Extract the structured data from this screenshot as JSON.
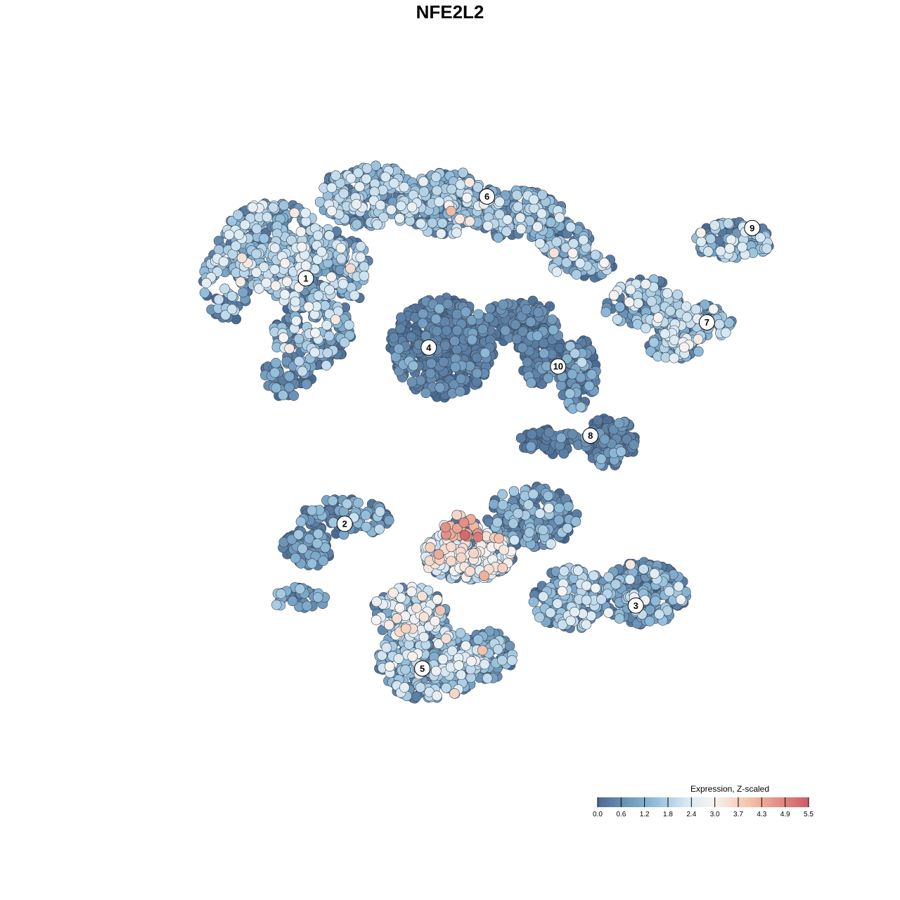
{
  "chart_data": {
    "type": "scatter",
    "title": "NFE2L2",
    "xlabel": "",
    "ylabel": "",
    "xlim": [
      0,
      100
    ],
    "ylim": [
      0,
      100
    ],
    "grid": false,
    "legend": {
      "title": "Expression, Z-scaled",
      "placement": "bottom-right",
      "ticks": [
        "0.0",
        "0.6",
        "1.2",
        "1.8",
        "2.4",
        "3.0",
        "3.7",
        "4.3",
        "4.9",
        "5.5"
      ],
      "range": [
        0,
        5.5
      ],
      "colors": [
        "#4a6a92",
        "#8ab7d6",
        "#d6e8f3",
        "#f7f4f2",
        "#f4c1a8",
        "#cf5b62"
      ]
    },
    "clusters": [
      {
        "id": "1",
        "x": 25,
        "y": 77
      },
      {
        "id": "2",
        "x": 31,
        "y": 38
      },
      {
        "id": "3",
        "x": 76,
        "y": 25
      },
      {
        "id": "4",
        "x": 44,
        "y": 66
      },
      {
        "id": "5",
        "x": 43,
        "y": 15
      },
      {
        "id": "6",
        "x": 53,
        "y": 90
      },
      {
        "id": "7",
        "x": 87,
        "y": 70
      },
      {
        "id": "8",
        "x": 69,
        "y": 52
      },
      {
        "id": "9",
        "x": 94,
        "y": 85
      },
      {
        "id": "10",
        "x": 64,
        "y": 63
      }
    ],
    "blobs": [
      {
        "cluster": "1",
        "cx": 20,
        "cy": 82,
        "rx": 9,
        "ry": 7,
        "n": 260,
        "mean": 1.7,
        "sd": 0.6
      },
      {
        "cluster": "1",
        "cx": 27,
        "cy": 78,
        "rx": 8,
        "ry": 7,
        "n": 260,
        "mean": 1.5,
        "sd": 0.7
      },
      {
        "cluster": "1",
        "cx": 26,
        "cy": 68,
        "rx": 6,
        "ry": 6,
        "n": 140,
        "mean": 1.3,
        "sd": 0.8
      },
      {
        "cluster": "1",
        "cx": 13,
        "cy": 76,
        "rx": 4,
        "ry": 6,
        "n": 70,
        "mean": 1.2,
        "sd": 0.8
      },
      {
        "cluster": "1",
        "cx": 22,
        "cy": 61,
        "rx": 4,
        "ry": 3,
        "n": 50,
        "mean": 0.6,
        "sd": 0.6
      },
      {
        "cluster": "6",
        "cx": 35,
        "cy": 90,
        "rx": 8,
        "ry": 5,
        "n": 220,
        "mean": 1.6,
        "sd": 0.6
      },
      {
        "cluster": "6",
        "cx": 47,
        "cy": 89,
        "rx": 8,
        "ry": 5,
        "n": 220,
        "mean": 1.4,
        "sd": 0.7
      },
      {
        "cluster": "6",
        "cx": 58,
        "cy": 87,
        "rx": 7,
        "ry": 4,
        "n": 170,
        "mean": 1.2,
        "sd": 0.7
      },
      {
        "cluster": "6",
        "cx": 65,
        "cy": 83,
        "rx": 4,
        "ry": 3,
        "n": 70,
        "mean": 1.1,
        "sd": 0.8
      },
      {
        "cluster": "4",
        "cx": 46,
        "cy": 66,
        "rx": 8,
        "ry": 8,
        "n": 420,
        "mean": 0.3,
        "sd": 0.4
      },
      {
        "cluster": "4",
        "cx": 56,
        "cy": 70,
        "rx": 4,
        "ry": 3,
        "n": 70,
        "mean": 0.3,
        "sd": 0.4
      },
      {
        "cluster": "10",
        "cx": 61,
        "cy": 66,
        "rx": 3.5,
        "ry": 6,
        "n": 130,
        "mean": 0.3,
        "sd": 0.4
      },
      {
        "cluster": "10",
        "cx": 60,
        "cy": 72,
        "rx": 3,
        "ry": 2,
        "n": 40,
        "mean": 0.3,
        "sd": 0.3
      },
      {
        "cluster": "7",
        "cx": 77,
        "cy": 73,
        "rx": 6,
        "ry": 4,
        "n": 130,
        "mean": 1.3,
        "sd": 0.7
      },
      {
        "cluster": "7",
        "cx": 85,
        "cy": 70,
        "rx": 6,
        "ry": 3,
        "n": 120,
        "mean": 1.5,
        "sd": 0.7
      },
      {
        "cluster": "7",
        "cx": 82,
        "cy": 66,
        "rx": 4,
        "ry": 2,
        "n": 70,
        "mean": 1.4,
        "sd": 0.8
      },
      {
        "cluster": "7",
        "cx": 68,
        "cy": 79,
        "rx": 5,
        "ry": 2,
        "n": 60,
        "mean": 1.0,
        "sd": 0.8
      },
      {
        "cluster": "9",
        "cx": 91,
        "cy": 83,
        "rx": 6,
        "ry": 3,
        "n": 110,
        "mean": 1.3,
        "sd": 0.7
      },
      {
        "cluster": "8",
        "cx": 67,
        "cy": 62,
        "rx": 3,
        "ry": 6,
        "n": 90,
        "mean": 0.6,
        "sd": 0.7
      },
      {
        "cluster": "8",
        "cx": 72,
        "cy": 51,
        "rx": 4,
        "ry": 4,
        "n": 110,
        "mean": 0.4,
        "sd": 0.5
      },
      {
        "cluster": "8",
        "cx": 63,
        "cy": 51,
        "rx": 5,
        "ry": 2,
        "n": 60,
        "mean": 0.3,
        "sd": 0.4
      },
      {
        "cluster": "2",
        "cx": 31,
        "cy": 39,
        "rx": 7,
        "ry": 3,
        "n": 120,
        "mean": 0.6,
        "sd": 0.7
      },
      {
        "cluster": "2",
        "cx": 25,
        "cy": 34,
        "rx": 4,
        "ry": 3,
        "n": 90,
        "mean": 0.5,
        "sd": 0.6
      },
      {
        "cluster": "2",
        "cx": 24,
        "cy": 26,
        "rx": 4,
        "ry": 2,
        "n": 40,
        "mean": 0.7,
        "sd": 0.7
      },
      {
        "cluster": "3",
        "cx": 77,
        "cy": 27,
        "rx": 7,
        "ry": 5,
        "n": 240,
        "mean": 1.1,
        "sd": 0.7
      },
      {
        "cluster": "3",
        "cx": 66,
        "cy": 26,
        "rx": 6,
        "ry": 5,
        "n": 170,
        "mean": 1.3,
        "sd": 0.7
      },
      {
        "cluster": "3",
        "cx": 60,
        "cy": 39,
        "rx": 7,
        "ry": 5,
        "n": 200,
        "mean": 0.7,
        "sd": 0.7
      },
      {
        "cluster": "3",
        "cx": 50,
        "cy": 33,
        "rx": 7,
        "ry": 4,
        "n": 260,
        "mean": 2.6,
        "sd": 0.7
      },
      {
        "cluster": "3",
        "cx": 49,
        "cy": 37,
        "rx": 3,
        "ry": 2.5,
        "n": 50,
        "mean": 3.6,
        "sd": 0.7
      },
      {
        "cluster": "5",
        "cx": 44,
        "cy": 16,
        "rx": 8,
        "ry": 6,
        "n": 320,
        "mean": 1.5,
        "sd": 0.7
      },
      {
        "cluster": "5",
        "cx": 41,
        "cy": 24,
        "rx": 6,
        "ry": 4,
        "n": 160,
        "mean": 2.0,
        "sd": 0.8
      },
      {
        "cluster": "5",
        "cx": 53,
        "cy": 17,
        "rx": 4,
        "ry": 4,
        "n": 100,
        "mean": 1.3,
        "sd": 0.7
      }
    ]
  }
}
